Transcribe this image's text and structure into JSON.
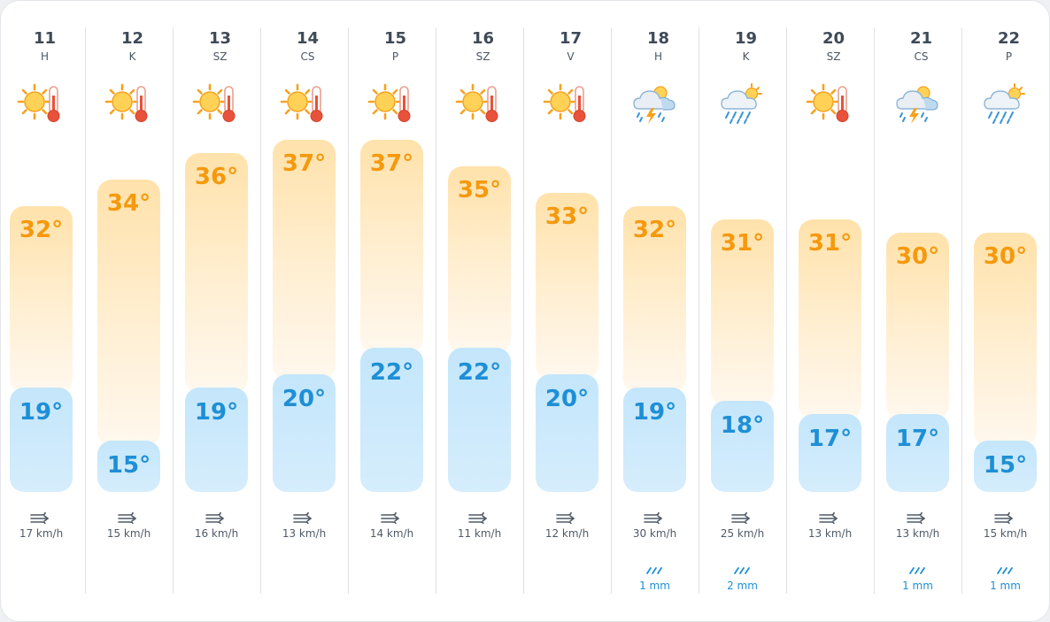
{
  "days": [
    {
      "date": "11",
      "day": "H",
      "high": "32°",
      "low": "19°",
      "high_val": 32,
      "low_val": 19,
      "icon": "sun-thermometer-icon",
      "wind": "17 km/h",
      "rain": ""
    },
    {
      "date": "12",
      "day": "K",
      "high": "34°",
      "low": "15°",
      "high_val": 34,
      "low_val": 15,
      "icon": "sun-thermometer-icon",
      "wind": "15 km/h",
      "rain": ""
    },
    {
      "date": "13",
      "day": "SZ",
      "high": "36°",
      "low": "19°",
      "high_val": 36,
      "low_val": 19,
      "icon": "sun-thermometer-icon",
      "wind": "16 km/h",
      "rain": ""
    },
    {
      "date": "14",
      "day": "CS",
      "high": "37°",
      "low": "20°",
      "high_val": 37,
      "low_val": 20,
      "icon": "sun-thermometer-icon",
      "wind": "13 km/h",
      "rain": ""
    },
    {
      "date": "15",
      "day": "P",
      "high": "37°",
      "low": "22°",
      "high_val": 37,
      "low_val": 22,
      "icon": "sun-thermometer-icon",
      "wind": "14 km/h",
      "rain": ""
    },
    {
      "date": "16",
      "day": "SZ",
      "high": "35°",
      "low": "22°",
      "high_val": 35,
      "low_val": 22,
      "icon": "sun-thermometer-icon",
      "wind": "11 km/h",
      "rain": ""
    },
    {
      "date": "17",
      "day": "V",
      "high": "33°",
      "low": "20°",
      "high_val": 33,
      "low_val": 20,
      "icon": "sun-thermometer-icon",
      "wind": "12 km/h",
      "rain": ""
    },
    {
      "date": "18",
      "day": "H",
      "high": "32°",
      "low": "19°",
      "high_val": 32,
      "low_val": 19,
      "icon": "thunderstorm-icon",
      "wind": "30 km/h",
      "rain": "1 mm"
    },
    {
      "date": "19",
      "day": "K",
      "high": "31°",
      "low": "18°",
      "high_val": 31,
      "low_val": 18,
      "icon": "rain-sun-icon",
      "wind": "25 km/h",
      "rain": "2 mm"
    },
    {
      "date": "20",
      "day": "SZ",
      "high": "31°",
      "low": "17°",
      "high_val": 31,
      "low_val": 17,
      "icon": "sun-thermometer-icon",
      "wind": "13 km/h",
      "rain": ""
    },
    {
      "date": "21",
      "day": "CS",
      "high": "30°",
      "low": "17°",
      "high_val": 30,
      "low_val": 17,
      "icon": "thunderstorm-icon",
      "wind": "13 km/h",
      "rain": "1 mm"
    },
    {
      "date": "22",
      "day": "P",
      "high": "30°",
      "low": "15°",
      "high_val": 30,
      "low_val": 15,
      "icon": "rain-sun-icon",
      "wind": "15 km/h",
      "rain": "1 mm"
    }
  ],
  "colors": {
    "high_text": "#f5990d",
    "low_text": "#1e8fd6",
    "high_bar": "#ffe2ab",
    "low_bar": "#c4e6fb"
  }
}
